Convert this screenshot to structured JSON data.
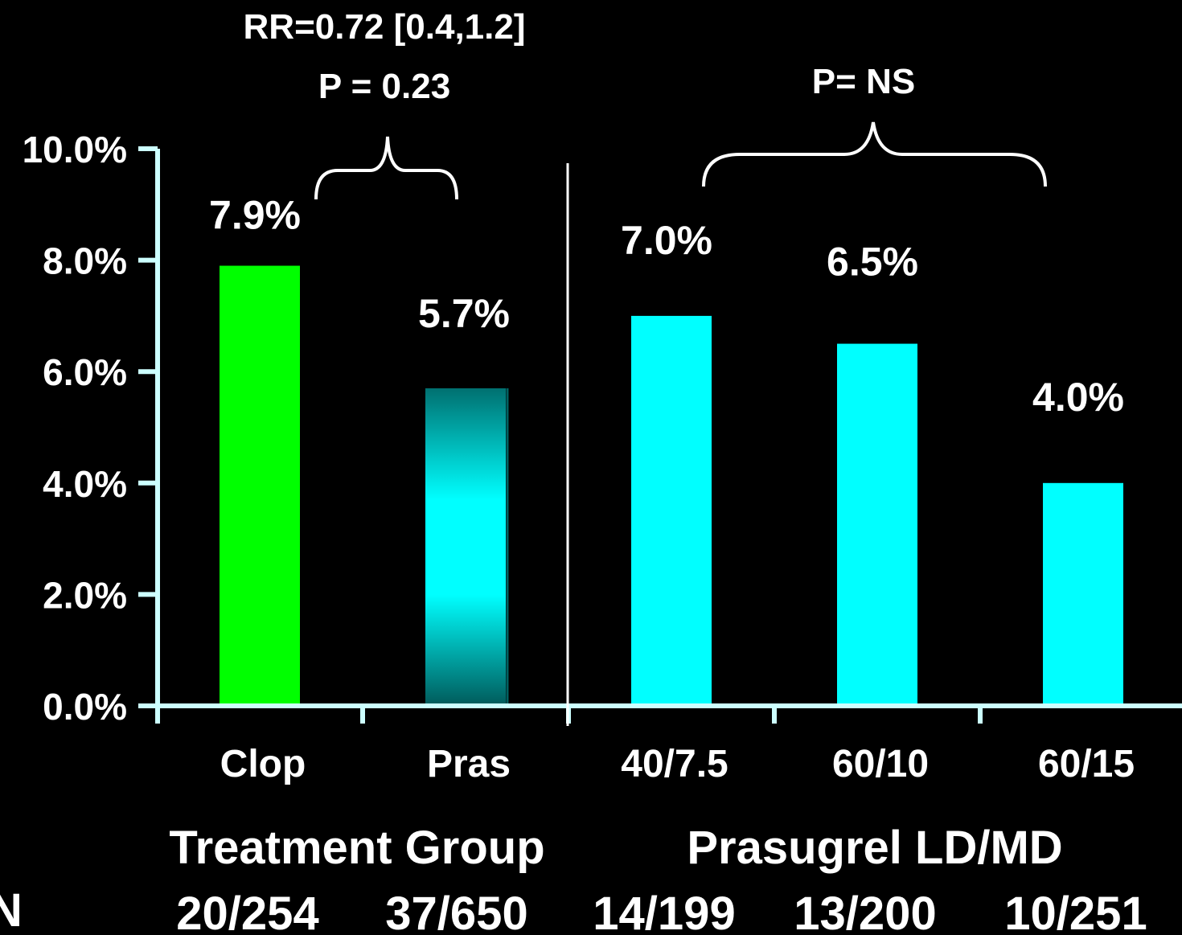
{
  "chart_data": {
    "type": "bar",
    "title": "",
    "xlabel": "",
    "ylabel": "",
    "ylim": [
      0,
      10
    ],
    "y_tick_values": [
      0,
      2,
      4,
      6,
      8,
      10
    ],
    "y_tick_labels": [
      "0.0%",
      "2.0%",
      "4.0%",
      "6.0%",
      "8.0%",
      "10.0%"
    ],
    "categories": [
      "Clop",
      "Pras",
      "40/7.5",
      "60/10",
      "60/15"
    ],
    "values": [
      7.9,
      5.7,
      7.0,
      6.5,
      4.0
    ],
    "data_labels": [
      "7.9%",
      "5.7%",
      "7.0%",
      "6.5%",
      "4.0%"
    ],
    "bar_colors": [
      "#00ff00",
      "#00a0a0",
      "#00ffff",
      "#00ffff",
      "#00ffff"
    ],
    "group_labels": [
      "Treatment Group",
      "Prasugrel LD/MD"
    ],
    "n_label": "N",
    "n_values": [
      "20/254",
      "37/650",
      "14/199",
      "13/200",
      "10/251"
    ],
    "annotations": {
      "left_rr": "RR=0.72 [0.4,1.2]",
      "left_p": "P = 0.23",
      "right_p": "P= NS"
    },
    "grid": false,
    "legend": "none"
  }
}
